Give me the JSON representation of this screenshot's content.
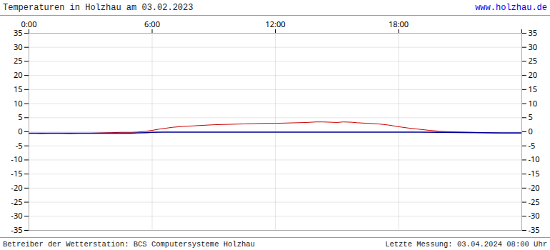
{
  "chart_data": {
    "type": "line",
    "title": "Temperaturen in Holzhau am 03.02.2023",
    "annotations": [
      {
        "text": "www.holzhau.de",
        "color": "#0000ee"
      },
      {
        "text": "Betreiber der Wetterstation: BCS Computersysteme Holzhau"
      },
      {
        "text": "Letzte Messung: 03.04.2024 08:00 Uhr"
      }
    ],
    "xlim": [
      0,
      24
    ],
    "ylim": [
      -35,
      35
    ],
    "xticks": [
      {
        "value": 0,
        "label": "0:00"
      },
      {
        "value": 6,
        "label": "6:00"
      },
      {
        "value": 12,
        "label": "12:00"
      },
      {
        "value": 18,
        "label": "18:00"
      },
      {
        "value": 24,
        "label": null
      }
    ],
    "yticks": [
      -35,
      -30,
      -25,
      -20,
      -15,
      -10,
      -5,
      0,
      5,
      10,
      15,
      20,
      25,
      30,
      35
    ],
    "grid": true,
    "series": [
      {
        "color": "#cc0000",
        "x": [
          0.0,
          0.3,
          0.6,
          1.0,
          1.5,
          2.0,
          2.5,
          3.0,
          3.5,
          4.0,
          4.5,
          5.0,
          5.3,
          5.7,
          6.0,
          6.3,
          6.7,
          7.0,
          7.5,
          8.0,
          8.5,
          9.0,
          9.5,
          10.0,
          10.5,
          11.0,
          11.5,
          12.0,
          12.5,
          13.0,
          13.5,
          14.0,
          14.3,
          14.7,
          15.0,
          15.3,
          15.7,
          16.0,
          16.5,
          17.0,
          17.5,
          18.0,
          18.5,
          19.0,
          19.5,
          20.0,
          20.5,
          21.0,
          21.5,
          22.0,
          22.5,
          23.0,
          23.5,
          24.0
        ],
        "values": [
          -0.5,
          -0.5,
          -0.6,
          -0.5,
          -0.5,
          -0.6,
          -0.5,
          -0.5,
          -0.4,
          -0.3,
          -0.2,
          -0.2,
          -0.1,
          0.2,
          0.5,
          0.9,
          1.3,
          1.6,
          1.9,
          2.1,
          2.3,
          2.5,
          2.6,
          2.7,
          2.8,
          2.9,
          3.0,
          3.0,
          3.1,
          3.2,
          3.3,
          3.5,
          3.5,
          3.4,
          3.3,
          3.5,
          3.4,
          3.2,
          3.0,
          2.8,
          2.4,
          1.8,
          1.3,
          0.9,
          0.5,
          0.2,
          0.0,
          -0.1,
          -0.2,
          -0.3,
          -0.4,
          -0.5,
          -0.5,
          -0.5
        ]
      },
      {
        "color": "#000099",
        "x": [
          0.0,
          0.5,
          1.0,
          2.0,
          3.0,
          4.0,
          5.0,
          5.3,
          5.7,
          6.0,
          6.5,
          7.0,
          10.0,
          14.0,
          17.0,
          18.0,
          19.0,
          20.0,
          21.0,
          22.0,
          23.0,
          24.0
        ],
        "values": [
          -0.5,
          -0.5,
          -0.5,
          -0.5,
          -0.5,
          -0.5,
          -0.5,
          -0.4,
          -0.3,
          -0.2,
          -0.15,
          -0.1,
          -0.1,
          -0.1,
          -0.1,
          -0.1,
          -0.15,
          -0.2,
          -0.25,
          -0.3,
          -0.35,
          -0.4
        ]
      }
    ]
  }
}
